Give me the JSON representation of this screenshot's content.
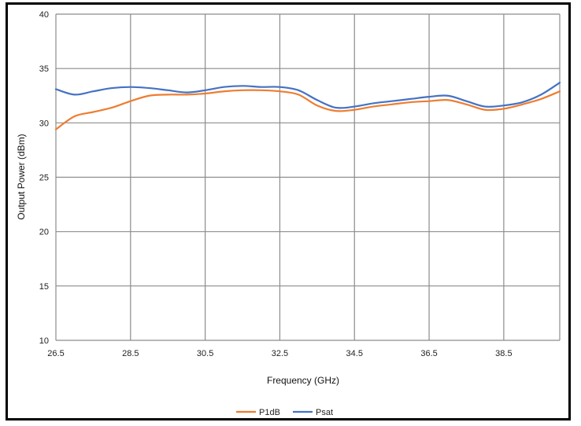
{
  "chart_data": {
    "type": "line",
    "title": "",
    "xlabel": "Frequency (GHz)",
    "ylabel": "Output Power (dBm)",
    "xlim": [
      26.5,
      40.0
    ],
    "ylim": [
      10,
      40
    ],
    "x_ticks": [
      26.5,
      28.5,
      30.5,
      32.5,
      34.5,
      36.5,
      38.5
    ],
    "x_tick_labels": [
      "26.5",
      "28.5",
      "30.5",
      "32.5",
      "34.5",
      "36.5",
      "38.5"
    ],
    "y_ticks": [
      10,
      15,
      20,
      25,
      30,
      35,
      40
    ],
    "y_tick_labels": [
      "10",
      "15",
      "20",
      "25",
      "30",
      "35",
      "40"
    ],
    "grid": true,
    "legend_position": "bottom",
    "x": [
      26.5,
      27.0,
      27.5,
      28.0,
      28.5,
      29.0,
      29.5,
      30.0,
      30.5,
      31.0,
      31.5,
      32.0,
      32.5,
      33.0,
      33.5,
      34.0,
      34.5,
      35.0,
      35.5,
      36.0,
      36.5,
      37.0,
      37.5,
      38.0,
      38.5,
      39.0,
      39.5,
      40.0
    ],
    "series": [
      {
        "name": "P1dB",
        "color": "#ED7D31",
        "values": [
          29.4,
          30.6,
          31.0,
          31.4,
          32.0,
          32.5,
          32.6,
          32.6,
          32.7,
          32.9,
          33.0,
          33.0,
          32.9,
          32.6,
          31.6,
          31.1,
          31.2,
          31.5,
          31.7,
          31.9,
          32.0,
          32.1,
          31.7,
          31.2,
          31.3,
          31.7,
          32.2,
          32.9
        ]
      },
      {
        "name": "Psat",
        "color": "#4472C4",
        "values": [
          33.1,
          32.6,
          32.9,
          33.2,
          33.3,
          33.2,
          33.0,
          32.8,
          33.0,
          33.3,
          33.4,
          33.3,
          33.3,
          33.0,
          32.1,
          31.4,
          31.5,
          31.8,
          32.0,
          32.2,
          32.4,
          32.5,
          32.0,
          31.5,
          31.6,
          31.9,
          32.6,
          33.7
        ]
      }
    ]
  }
}
